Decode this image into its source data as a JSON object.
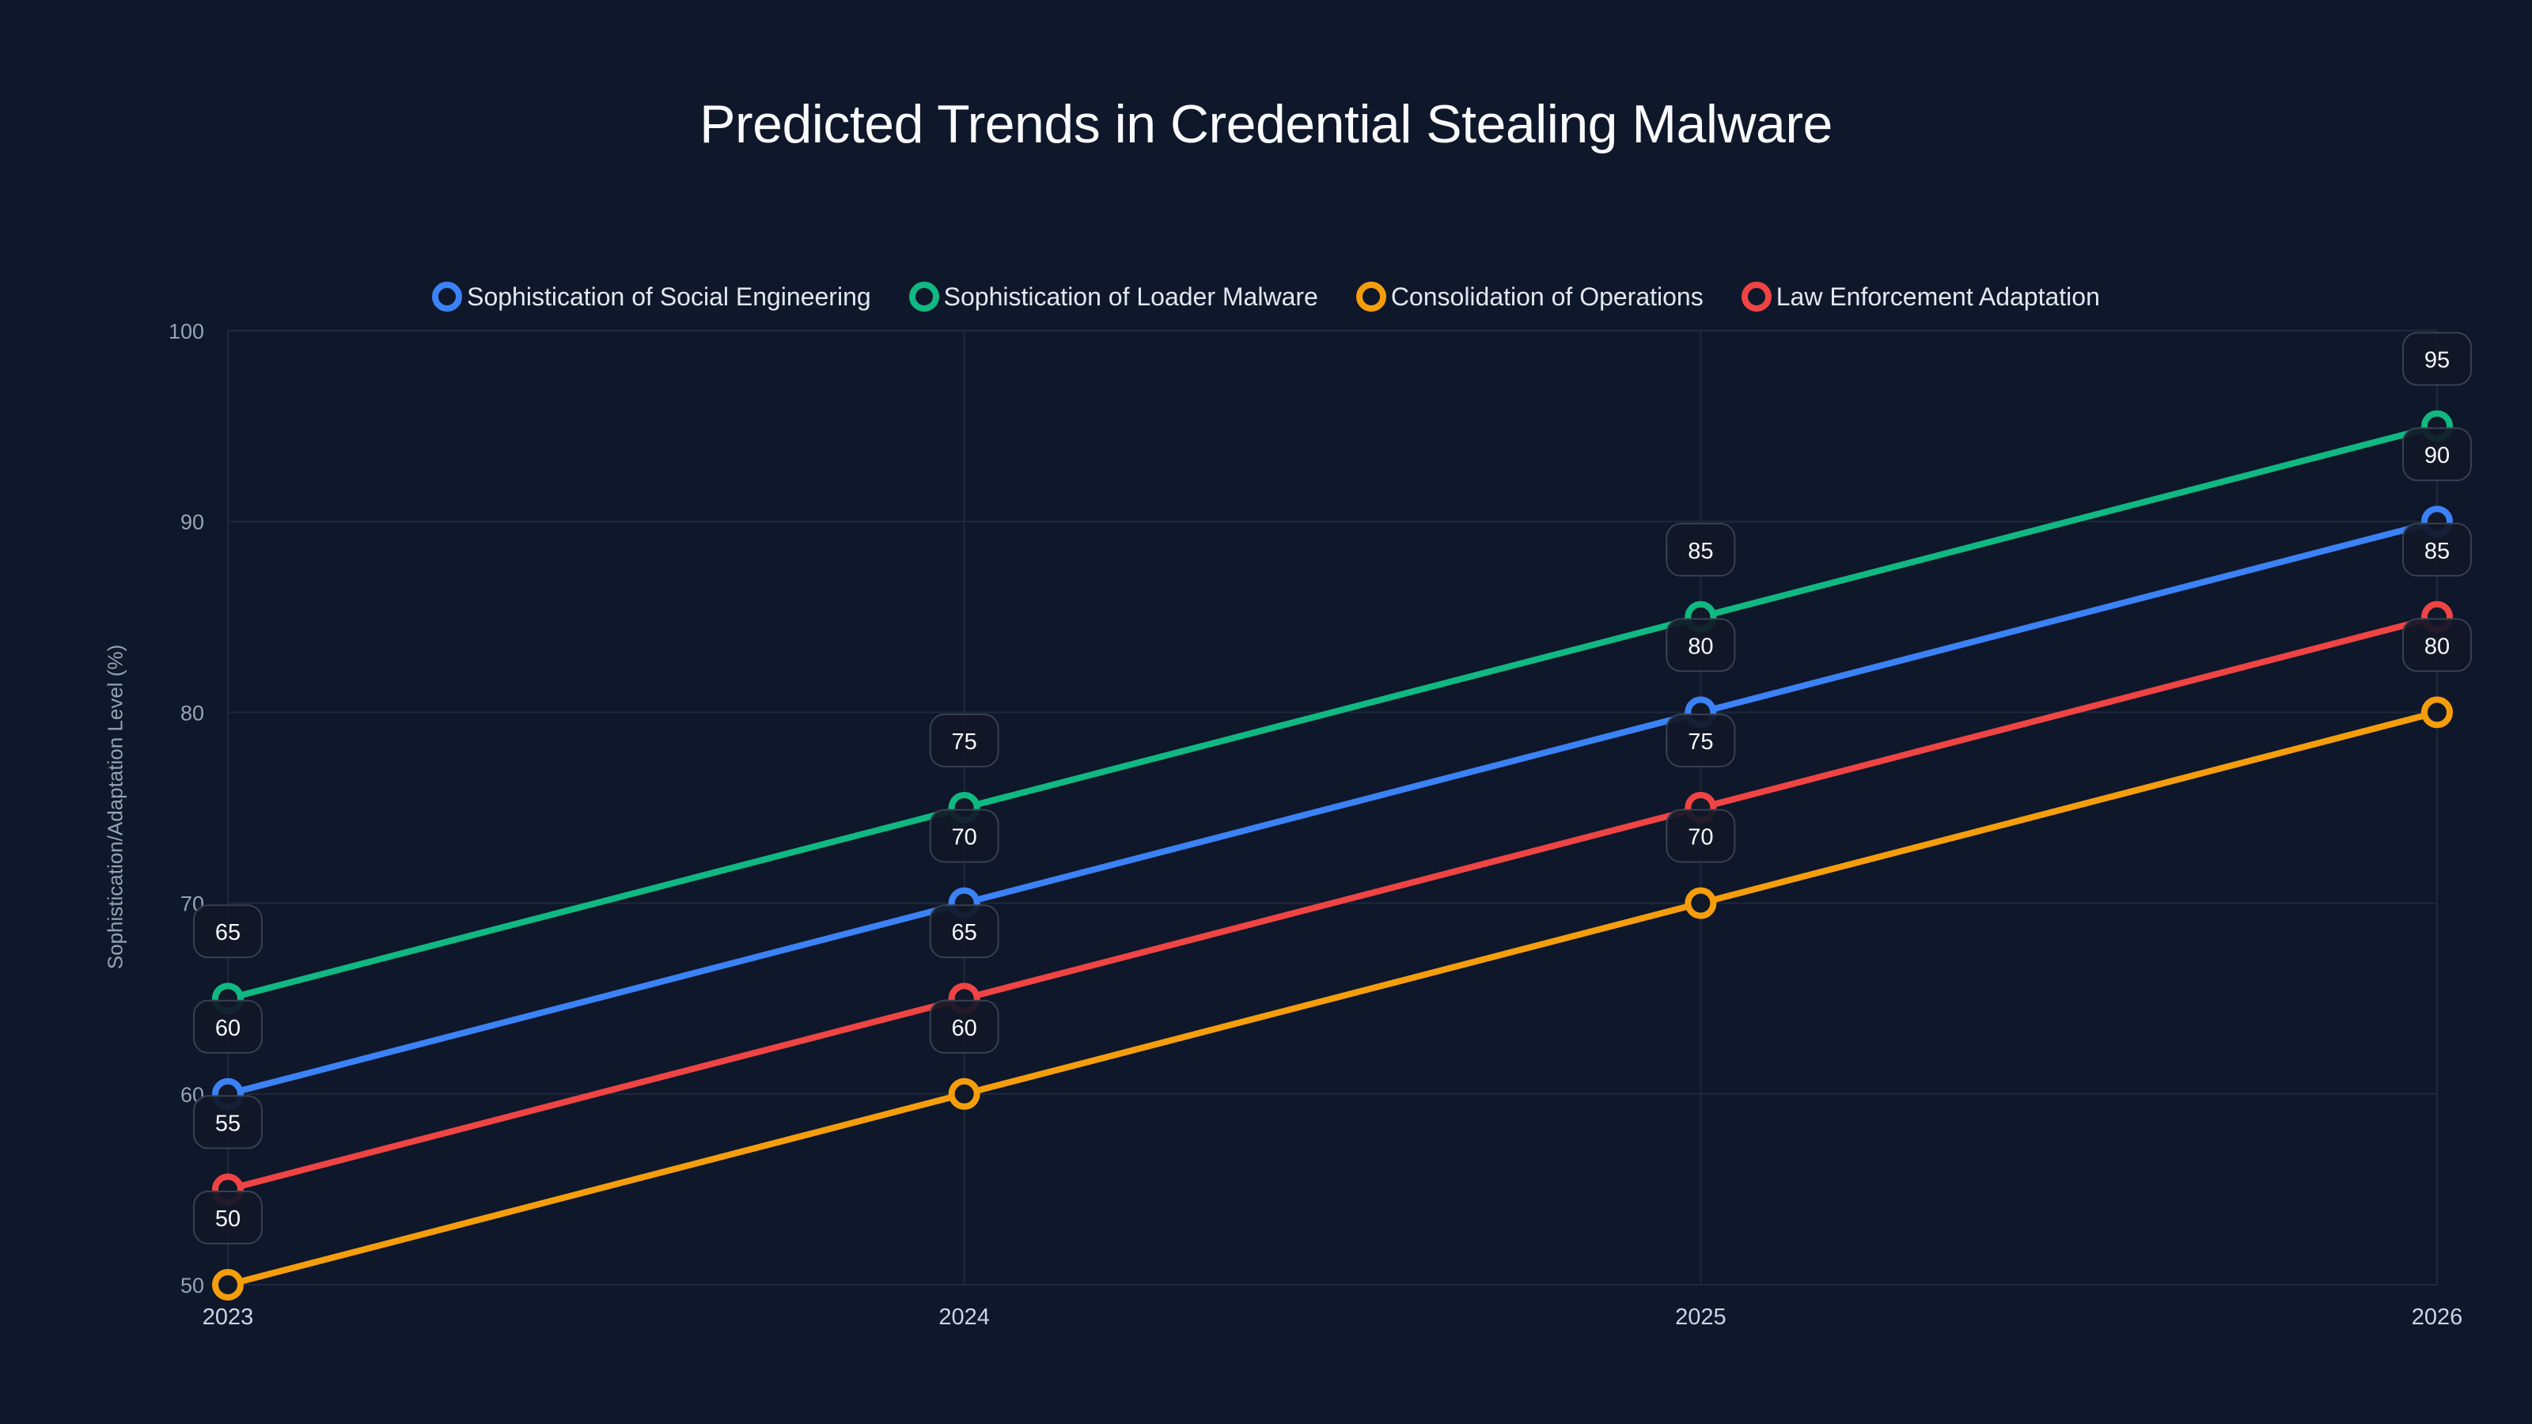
{
  "background": "#0f172a",
  "chart_data": {
    "type": "line",
    "title": "Predicted Trends in Credential Stealing Malware",
    "xlabel": "",
    "ylabel": "Sophistication/Adaptation Level (%)",
    "categories": [
      "2023",
      "2024",
      "2025",
      "2026"
    ],
    "ylim": [
      50,
      100
    ],
    "yticks": [
      50,
      60,
      70,
      80,
      90,
      100
    ],
    "grid": true,
    "legend_position": "top",
    "data_labels": true,
    "series": [
      {
        "name": "Sophistication of Social Engineering",
        "color": "#3b82f6",
        "values": [
          60,
          70,
          80,
          90
        ]
      },
      {
        "name": "Sophistication of Loader Malware",
        "color": "#10b981",
        "values": [
          65,
          75,
          85,
          95
        ]
      },
      {
        "name": "Consolidation of Operations",
        "color": "#f59e0b",
        "values": [
          50,
          60,
          70,
          80
        ]
      },
      {
        "name": "Law Enforcement Adaptation",
        "color": "#ef4444",
        "values": [
          55,
          65,
          75,
          85
        ]
      }
    ]
  },
  "style": {
    "grid_color": "#1e293b",
    "tick_color": "#94a3b8",
    "xtick_color": "#cbd5e1",
    "label_box_border": "#374151",
    "label_box_fill": "#111827",
    "label_text": "#f8fafc"
  }
}
